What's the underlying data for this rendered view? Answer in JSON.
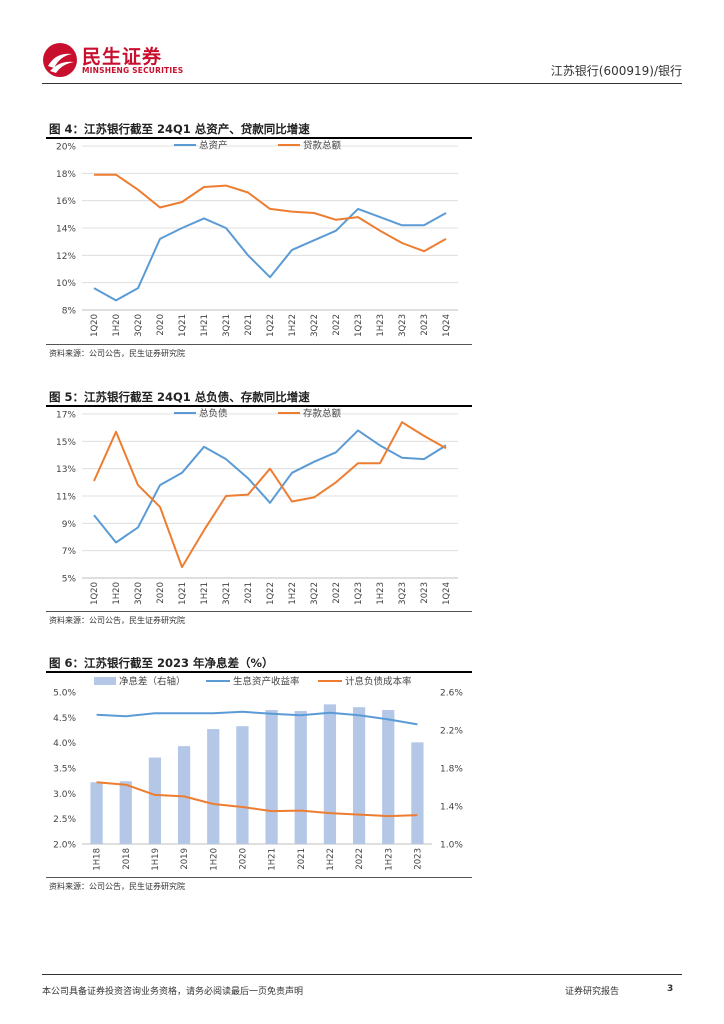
{
  "header": {
    "logo_cn": "民生证券",
    "logo_en": "MINSHENG SECURITIES",
    "right_text": "江苏银行(600919)/银行"
  },
  "figures": [
    {
      "title": "图 4：江苏银行截至 24Q1 总资产、贷款同比增速",
      "source": "资料来源：公司公告，民生证券研究院"
    },
    {
      "title": "图 5：江苏银行截至 24Q1 总负债、存款同比增速",
      "source": "资料来源：公司公告，民生证券研究院"
    },
    {
      "title": "图 6：江苏银行截至 2023 年净息差（%）",
      "source": "资料来源：公司公告，民生证券研究院"
    }
  ],
  "chart_data": [
    {
      "type": "line",
      "x": [
        "1Q20",
        "1H20",
        "3Q20",
        "2020",
        "1Q21",
        "1H21",
        "3Q21",
        "2021",
        "1Q22",
        "1H22",
        "3Q22",
        "2022",
        "1Q23",
        "1H23",
        "3Q23",
        "2023",
        "1Q24"
      ],
      "series": [
        {
          "name": "总资产",
          "color": "#5b9bd5",
          "values": [
            9.6,
            8.7,
            9.6,
            13.2,
            14.0,
            14.7,
            14.0,
            12.0,
            10.4,
            12.4,
            13.1,
            13.8,
            15.4,
            14.8,
            14.2,
            14.2,
            15.1
          ]
        },
        {
          "name": "贷款总额",
          "color": "#ed7d31",
          "values": [
            17.9,
            17.9,
            16.8,
            15.5,
            15.9,
            17.0,
            17.1,
            16.6,
            15.4,
            15.2,
            15.1,
            14.6,
            14.8,
            13.8,
            12.9,
            12.3,
            13.2
          ]
        }
      ],
      "ylim": [
        8,
        20
      ],
      "yticks": [
        "8%",
        "10%",
        "12%",
        "14%",
        "16%",
        "18%",
        "20%"
      ],
      "legend": "top"
    },
    {
      "type": "line",
      "x": [
        "1Q20",
        "1H20",
        "3Q20",
        "2020",
        "1Q21",
        "1H21",
        "3Q21",
        "2021",
        "1Q22",
        "1H22",
        "3Q22",
        "2022",
        "1Q23",
        "1H23",
        "3Q23",
        "2023",
        "1Q24"
      ],
      "series": [
        {
          "name": "总负债",
          "color": "#5b9bd5",
          "values": [
            9.6,
            7.6,
            8.7,
            11.8,
            12.7,
            14.6,
            13.7,
            12.3,
            10.5,
            12.7,
            13.5,
            14.2,
            15.8,
            14.7,
            13.8,
            13.7,
            14.7
          ]
        },
        {
          "name": "存款总额",
          "color": "#ed7d31",
          "values": [
            12.1,
            15.7,
            11.8,
            10.2,
            5.8,
            8.5,
            11.0,
            11.1,
            13.0,
            10.6,
            10.9,
            12.0,
            13.4,
            13.4,
            16.4,
            15.4,
            14.5
          ]
        }
      ],
      "ylim": [
        5,
        17
      ],
      "yticks": [
        "5%",
        "7%",
        "9%",
        "11%",
        "13%",
        "15%",
        "17%"
      ],
      "legend": "top"
    },
    {
      "type": "bar+line",
      "x": [
        "1H18",
        "2018",
        "1H19",
        "2019",
        "1H20",
        "2020",
        "1H21",
        "2021",
        "1H22",
        "2022",
        "1H23",
        "2023"
      ],
      "bar_series": {
        "name": "净息差（右轴）",
        "color": "#b4c7e7",
        "values": [
          1.65,
          1.66,
          1.91,
          2.03,
          2.21,
          2.24,
          2.41,
          2.4,
          2.47,
          2.44,
          2.41,
          2.07
        ],
        "axis": "right",
        "ylim": [
          1.0,
          2.6
        ],
        "yticks": [
          "1.0%",
          "1.4%",
          "1.8%",
          "2.2%",
          "2.6%"
        ]
      },
      "line_series": [
        {
          "name": "生息资产收益率",
          "color": "#5b9bd5",
          "values": [
            4.55,
            4.52,
            4.58,
            4.58,
            4.58,
            4.61,
            4.57,
            4.54,
            4.59,
            4.54,
            4.46,
            4.36
          ]
        },
        {
          "name": "计息负债成本率",
          "color": "#ed7d31",
          "values": [
            3.22,
            3.17,
            2.97,
            2.94,
            2.79,
            2.73,
            2.65,
            2.66,
            2.61,
            2.58,
            2.55,
            2.57
          ]
        }
      ],
      "ylim": [
        2.0,
        5.0
      ],
      "yticks": [
        "2.0%",
        "2.5%",
        "3.0%",
        "3.5%",
        "4.0%",
        "4.5%",
        "5.0%"
      ],
      "legend": "top"
    }
  ],
  "footer": {
    "disclaimer": "本公司具备证券投资咨询业务资格，请务必阅读最后一页免责声明",
    "report_type": "证券研究报告",
    "page": "3"
  }
}
